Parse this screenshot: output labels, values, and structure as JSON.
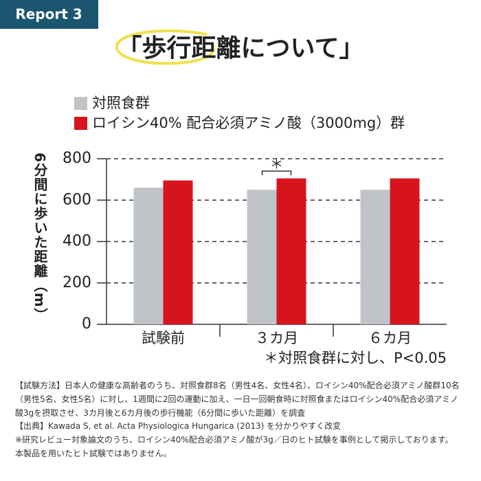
{
  "badge": "Report 3",
  "title": "「歩行距離について」",
  "chart_data": {
    "type": "bar",
    "ylabel": "6分間に歩いた距離（m）",
    "categories": [
      "試験前",
      "３カ月",
      "６カ月"
    ],
    "series": [
      {
        "name": "対照食群",
        "color": "#c0c4c8",
        "values": [
          660,
          650,
          650
        ]
      },
      {
        "name": "ロイシン40% 配合必須アミノ酸（3000mg）群",
        "color": "#d7141e",
        "values": [
          695,
          705,
          705
        ]
      }
    ],
    "ylim": [
      0,
      800
    ],
    "yticks": [
      0,
      200,
      400,
      600,
      800
    ],
    "grid": true,
    "significance": "＊",
    "annotation": "＊対照食群に対し、P<0.05"
  },
  "notes": [
    "【試験方法】日本人の健康な高齢者のうち、対照食群8名（男性4名、女性4名）、ロイシン40%配合必須アミノ酸群10名",
    "（男性5名、女性5名）に対し、1週間に2回の運動に加え、一日一回朝食時に対照食またはロイシン40%配合必須アミノ",
    "酸3gを摂取させ、3カ月後と6カ月後の歩行機能（6分間に歩いた距離）を調査",
    "【出典】Kawada S, et al. Acta Physiologica Hungarica (2013) を分かりやすく改変",
    "※研究レビュー対象論文のうち、ロイシン40%配合必須アミノ酸が3g／日のヒト試験を事例として掲示しております。",
    "本製品を用いたヒト試験ではありません。"
  ]
}
